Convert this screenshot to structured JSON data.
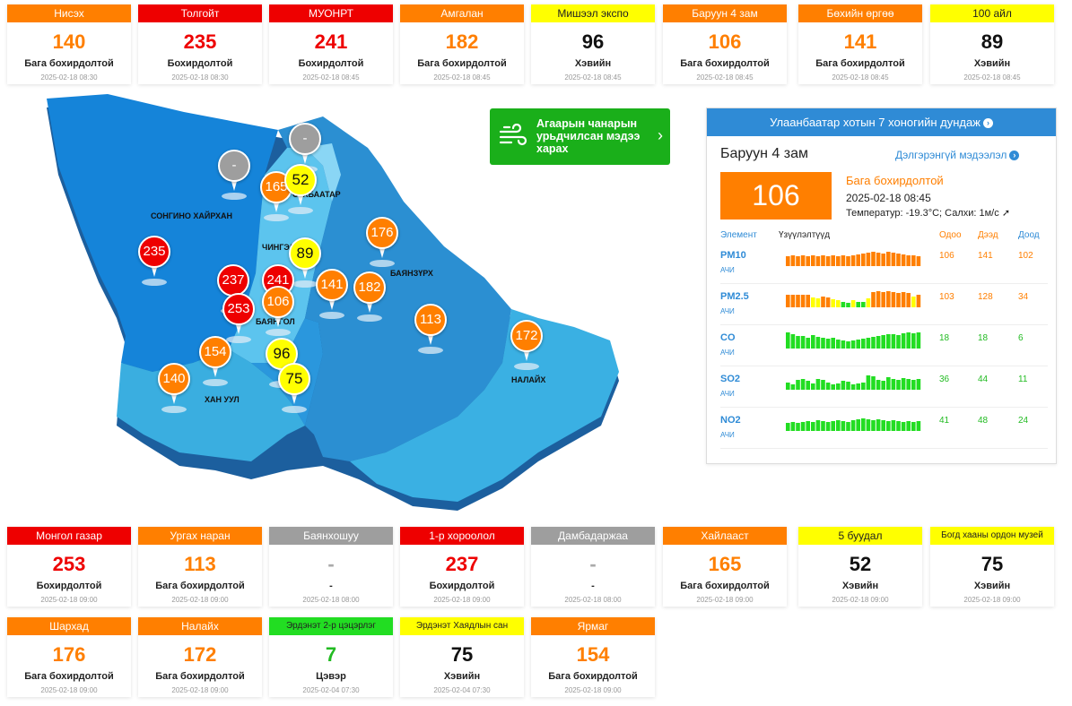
{
  "top_cards": [
    {
      "name": "Нисэх",
      "value": "140",
      "status": "Бага бохирдолтой",
      "time": "2025-02-18 08:30",
      "level": "orange"
    },
    {
      "name": "Толгойт",
      "value": "235",
      "status": "Бохирдолтой",
      "time": "2025-02-18 08:30",
      "level": "red"
    },
    {
      "name": "МУОНРТ",
      "value": "241",
      "status": "Бохирдолтой",
      "time": "2025-02-18 08:45",
      "level": "red"
    },
    {
      "name": "Амгалан",
      "value": "182",
      "status": "Бага бохирдолтой",
      "time": "2025-02-18 08:45",
      "level": "orange"
    },
    {
      "name": "Мишээл экспо",
      "value": "96",
      "status": "Хэвийн",
      "time": "2025-02-18 08:45",
      "level": "yellow"
    },
    {
      "name": "Баруун 4 зам",
      "value": "106",
      "status": "Бага бохирдолтой",
      "time": "2025-02-18 08:45",
      "level": "orange"
    },
    {
      "name": "Бөхийн өргөө",
      "value": "141",
      "status": "Бага бохирдолтой",
      "time": "2025-02-18 08:45",
      "level": "orange"
    },
    {
      "name": "100 айл",
      "value": "89",
      "status": "Хэвийн",
      "time": "2025-02-18 08:45",
      "level": "yellow"
    }
  ],
  "bottom_cards_row1": [
    {
      "name": "Монгол газар",
      "value": "253",
      "status": "Бохирдолтой",
      "time": "2025-02-18 09:00",
      "level": "red"
    },
    {
      "name": "Ургах наран",
      "value": "113",
      "status": "Бага бохирдолтой",
      "time": "2025-02-18 09:00",
      "level": "orange"
    },
    {
      "name": "Баянхошуу",
      "value": "-",
      "status": "-",
      "time": "2025-02-18 08:00",
      "level": "gray"
    },
    {
      "name": "1-р хороолол",
      "value": "237",
      "status": "Бохирдолтой",
      "time": "2025-02-18 09:00",
      "level": "red"
    },
    {
      "name": "Дамбадаржаа",
      "value": "-",
      "status": "-",
      "time": "2025-02-18 08:00",
      "level": "gray"
    },
    {
      "name": "Хайлааст",
      "value": "165",
      "status": "Бага бохирдолтой",
      "time": "2025-02-18 09:00",
      "level": "orange"
    },
    {
      "name": "5 буудал",
      "value": "52",
      "status": "Хэвийн",
      "time": "2025-02-18 09:00",
      "level": "yellow"
    },
    {
      "name": "Богд хааны ордон музей",
      "value": "75",
      "status": "Хэвийн",
      "time": "2025-02-18 09:00",
      "level": "yellow"
    }
  ],
  "bottom_cards_row2": [
    {
      "name": "Шархад",
      "value": "176",
      "status": "Бага бохирдолтой",
      "time": "2025-02-18 09:00",
      "level": "orange"
    },
    {
      "name": "Налайх",
      "value": "172",
      "status": "Бага бохирдолтой",
      "time": "2025-02-18 09:00",
      "level": "orange"
    },
    {
      "name": "Эрдэнэт 2-р цэцэрлэг",
      "value": "7",
      "status": "Цэвэр",
      "time": "2025-02-04 07:30",
      "level": "green"
    },
    {
      "name": "Эрдэнэт Хаядлын сан",
      "value": "75",
      "status": "Хэвийн",
      "time": "2025-02-04 07:30",
      "level": "yellow"
    },
    {
      "name": "Ярмаг",
      "value": "154",
      "status": "Бага бохирдолтой",
      "time": "2025-02-18 09:00",
      "level": "orange"
    }
  ],
  "map": {
    "district_labels": [
      "СОНГИНО ХАЙРХАН",
      "СҮХБААТАР",
      "ЧИНГЭЛТЭЙ",
      "БАЯНЗҮРХ",
      "БАЯНГОЛ",
      "ХАН УУЛ",
      "НАЛАЙХ"
    ],
    "pins": [
      {
        "value": "-",
        "level": "gray"
      },
      {
        "value": "-",
        "level": "gray"
      },
      {
        "value": "165",
        "level": "orange"
      },
      {
        "value": "52",
        "level": "yellow"
      },
      {
        "value": "176",
        "level": "orange"
      },
      {
        "value": "235",
        "level": "red"
      },
      {
        "value": "89",
        "level": "yellow"
      },
      {
        "value": "237",
        "level": "red"
      },
      {
        "value": "241",
        "level": "red"
      },
      {
        "value": "141",
        "level": "orange"
      },
      {
        "value": "182",
        "level": "orange"
      },
      {
        "value": "253",
        "level": "red"
      },
      {
        "value": "106",
        "level": "orange"
      },
      {
        "value": "113",
        "level": "orange"
      },
      {
        "value": "172",
        "level": "orange"
      },
      {
        "value": "154",
        "level": "orange"
      },
      {
        "value": "96",
        "level": "yellow"
      },
      {
        "value": "140",
        "level": "orange"
      },
      {
        "value": "75",
        "level": "yellow"
      }
    ]
  },
  "forecast_button": {
    "label": "Агаарын чанарын урьдчилсан мэдээ харах",
    "icon": "wind-icon",
    "chevron": "›"
  },
  "avg_panel": {
    "header": "Улаанбаатар хотын 7 хоногийн дундаж",
    "station": "Баруун 4 зам",
    "details_link": "Дэлгэрэнгүй мэдээлэл",
    "aqi": "106",
    "status": "Бага бохирдолтой",
    "time": "2025-02-18 08:45",
    "weather": "Температур: -19.3°C; Салхи: 1м/с",
    "wind_arrow": "➚",
    "col_element": "Элемент",
    "col_indicator": "Үзүүлэлтүүд",
    "col_current": "Одоо",
    "col_max": "Дээд",
    "col_min": "Доод",
    "pollutants": [
      {
        "name": "PM10",
        "unit": "АЧИ",
        "current": "106",
        "max": "141",
        "min": "102",
        "color": "orange",
        "bars": [
          [
            "orange",
            0.55
          ],
          [
            "orange",
            0.6
          ],
          [
            "orange",
            0.55
          ],
          [
            "orange",
            0.6
          ],
          [
            "orange",
            0.55
          ],
          [
            "orange",
            0.6
          ],
          [
            "orange",
            0.55
          ],
          [
            "orange",
            0.6
          ],
          [
            "orange",
            0.55
          ],
          [
            "orange",
            0.6
          ],
          [
            "orange",
            0.55
          ],
          [
            "orange",
            0.6
          ],
          [
            "orange",
            0.55
          ],
          [
            "orange",
            0.6
          ],
          [
            "orange",
            0.65
          ],
          [
            "orange",
            0.7
          ],
          [
            "orange",
            0.75
          ],
          [
            "orange",
            0.8
          ],
          [
            "orange",
            0.75
          ],
          [
            "orange",
            0.7
          ],
          [
            "orange",
            0.8
          ],
          [
            "orange",
            0.75
          ],
          [
            "orange",
            0.7
          ],
          [
            "orange",
            0.65
          ],
          [
            "orange",
            0.6
          ],
          [
            "orange",
            0.6
          ],
          [
            "orange",
            0.55
          ]
        ]
      },
      {
        "name": "PM2.5",
        "unit": "АЧИ",
        "current": "103",
        "max": "128",
        "min": "34",
        "color": "orange",
        "bars": [
          [
            "orange",
            0.7
          ],
          [
            "orange",
            0.7
          ],
          [
            "orange",
            0.7
          ],
          [
            "orange",
            0.7
          ],
          [
            "orange",
            0.7
          ],
          [
            "yellow",
            0.55
          ],
          [
            "yellow",
            0.5
          ],
          [
            "orange",
            0.6
          ],
          [
            "orange",
            0.55
          ],
          [
            "yellow",
            0.45
          ],
          [
            "yellow",
            0.4
          ],
          [
            "green",
            0.3
          ],
          [
            "green",
            0.25
          ],
          [
            "yellow",
            0.4
          ],
          [
            "green",
            0.3
          ],
          [
            "green",
            0.3
          ],
          [
            "yellow",
            0.5
          ],
          [
            "orange",
            0.85
          ],
          [
            "orange",
            0.9
          ],
          [
            "orange",
            0.85
          ],
          [
            "orange",
            0.9
          ],
          [
            "orange",
            0.85
          ],
          [
            "orange",
            0.8
          ],
          [
            "orange",
            0.85
          ],
          [
            "orange",
            0.8
          ],
          [
            "yellow",
            0.6
          ],
          [
            "orange",
            0.7
          ]
        ]
      },
      {
        "name": "CO",
        "unit": "АЧИ",
        "current": "18",
        "max": "18",
        "min": "6",
        "color": "green",
        "bars": [
          [
            "green",
            0.9
          ],
          [
            "green",
            0.8
          ],
          [
            "green",
            0.7
          ],
          [
            "green",
            0.7
          ],
          [
            "green",
            0.6
          ],
          [
            "green",
            0.75
          ],
          [
            "green",
            0.65
          ],
          [
            "green",
            0.6
          ],
          [
            "green",
            0.55
          ],
          [
            "green",
            0.6
          ],
          [
            "green",
            0.5
          ],
          [
            "green",
            0.45
          ],
          [
            "green",
            0.4
          ],
          [
            "green",
            0.45
          ],
          [
            "green",
            0.5
          ],
          [
            "green",
            0.55
          ],
          [
            "green",
            0.6
          ],
          [
            "green",
            0.65
          ],
          [
            "green",
            0.7
          ],
          [
            "green",
            0.75
          ],
          [
            "green",
            0.8
          ],
          [
            "green",
            0.8
          ],
          [
            "green",
            0.75
          ],
          [
            "green",
            0.85
          ],
          [
            "green",
            0.9
          ],
          [
            "green",
            0.85
          ],
          [
            "green",
            0.9
          ]
        ]
      },
      {
        "name": "SO2",
        "unit": "АЧИ",
        "current": "36",
        "max": "44",
        "min": "11",
        "color": "green",
        "bars": [
          [
            "green",
            0.4
          ],
          [
            "green",
            0.3
          ],
          [
            "green",
            0.55
          ],
          [
            "green",
            0.6
          ],
          [
            "green",
            0.5
          ],
          [
            "green",
            0.35
          ],
          [
            "green",
            0.6
          ],
          [
            "green",
            0.55
          ],
          [
            "green",
            0.4
          ],
          [
            "green",
            0.3
          ],
          [
            "green",
            0.35
          ],
          [
            "green",
            0.5
          ],
          [
            "green",
            0.45
          ],
          [
            "green",
            0.3
          ],
          [
            "green",
            0.35
          ],
          [
            "green",
            0.4
          ],
          [
            "green",
            0.8
          ],
          [
            "green",
            0.75
          ],
          [
            "green",
            0.55
          ],
          [
            "green",
            0.5
          ],
          [
            "green",
            0.7
          ],
          [
            "green",
            0.6
          ],
          [
            "green",
            0.55
          ],
          [
            "green",
            0.65
          ],
          [
            "green",
            0.6
          ],
          [
            "green",
            0.55
          ],
          [
            "green",
            0.6
          ]
        ]
      },
      {
        "name": "NO2",
        "unit": "АЧИ",
        "current": "41",
        "max": "48",
        "min": "24",
        "color": "green",
        "bars": [
          [
            "green",
            0.45
          ],
          [
            "green",
            0.5
          ],
          [
            "green",
            0.45
          ],
          [
            "green",
            0.5
          ],
          [
            "green",
            0.55
          ],
          [
            "green",
            0.5
          ],
          [
            "green",
            0.6
          ],
          [
            "green",
            0.55
          ],
          [
            "green",
            0.5
          ],
          [
            "green",
            0.55
          ],
          [
            "green",
            0.6
          ],
          [
            "green",
            0.55
          ],
          [
            "green",
            0.5
          ],
          [
            "green",
            0.6
          ],
          [
            "green",
            0.65
          ],
          [
            "green",
            0.7
          ],
          [
            "green",
            0.65
          ],
          [
            "green",
            0.6
          ],
          [
            "green",
            0.65
          ],
          [
            "green",
            0.6
          ],
          [
            "green",
            0.55
          ],
          [
            "green",
            0.6
          ],
          [
            "green",
            0.55
          ],
          [
            "green",
            0.5
          ],
          [
            "green",
            0.55
          ],
          [
            "green",
            0.5
          ],
          [
            "green",
            0.55
          ]
        ]
      }
    ]
  },
  "colors": {
    "orange": "#ff7f00",
    "red": "#ee0000",
    "yellow": "#ffff00",
    "gray": "#9e9e9e",
    "green": "#22dd22",
    "blue": "#2f8bd6",
    "btn_green": "#1aaf1a"
  }
}
